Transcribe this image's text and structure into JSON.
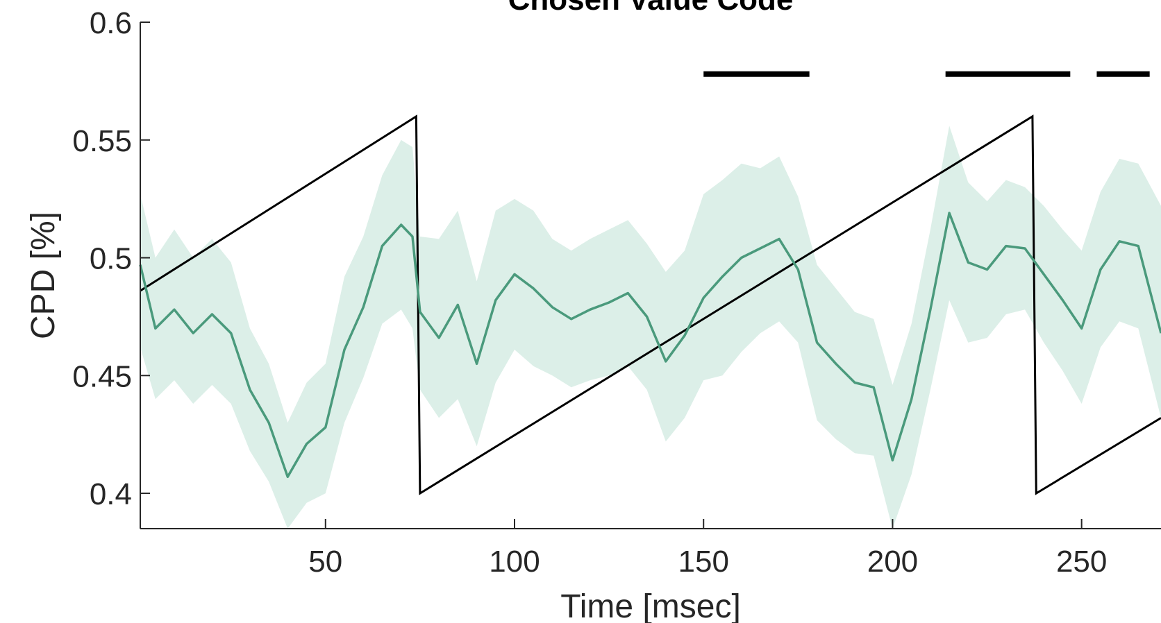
{
  "chart_data": {
    "type": "line",
    "title": "Chosen Value Code",
    "xlabel": "Time [msec]",
    "ylabel": "CPD [%]",
    "xlim": [
      1,
      271
    ],
    "ylim": [
      0.385,
      0.6
    ],
    "xticks": [
      50,
      100,
      150,
      200,
      250
    ],
    "xtick_labels": [
      "50",
      "100",
      "150",
      "200",
      "250"
    ],
    "yticks": [
      0.4,
      0.45,
      0.5,
      0.55,
      0.6
    ],
    "ytick_labels": [
      "0.4",
      "0.45",
      "0.5",
      "0.55",
      "0.6"
    ],
    "grid": false,
    "legend": "none",
    "colors": {
      "series": "#4a9a7c",
      "band": "#dcefe8",
      "reference": "#000000"
    },
    "series": [
      {
        "type": "line_with_sem_band",
        "x": [
          1,
          5,
          10,
          15,
          20,
          25,
          30,
          35,
          40,
          45,
          50,
          55,
          60,
          65,
          70,
          73,
          75,
          80,
          85,
          90,
          95,
          100,
          105,
          110,
          115,
          120,
          125,
          130,
          135,
          140,
          145,
          150,
          155,
          160,
          165,
          170,
          175,
          180,
          185,
          190,
          195,
          200,
          205,
          210,
          215,
          220,
          225,
          230,
          235,
          240,
          245,
          250,
          255,
          260,
          265,
          271
        ],
        "y": [
          0.497,
          0.47,
          0.478,
          0.468,
          0.476,
          0.468,
          0.444,
          0.43,
          0.407,
          0.421,
          0.428,
          0.461,
          0.479,
          0.505,
          0.514,
          0.509,
          0.477,
          0.466,
          0.48,
          0.455,
          0.482,
          0.493,
          0.487,
          0.479,
          0.474,
          0.478,
          0.481,
          0.485,
          0.475,
          0.456,
          0.467,
          0.483,
          0.492,
          0.5,
          0.504,
          0.508,
          0.495,
          0.464,
          0.455,
          0.447,
          0.445,
          0.414,
          0.44,
          0.478,
          0.519,
          0.498,
          0.495,
          0.505,
          0.504,
          0.493,
          0.482,
          0.47,
          0.495,
          0.507,
          0.505,
          0.468
        ],
        "upper": [
          0.527,
          0.5,
          0.512,
          0.5,
          0.508,
          0.498,
          0.47,
          0.455,
          0.43,
          0.447,
          0.455,
          0.492,
          0.509,
          0.535,
          0.55,
          0.547,
          0.509,
          0.508,
          0.52,
          0.49,
          0.52,
          0.525,
          0.52,
          0.508,
          0.503,
          0.508,
          0.512,
          0.516,
          0.506,
          0.494,
          0.503,
          0.527,
          0.533,
          0.54,
          0.538,
          0.543,
          0.526,
          0.497,
          0.487,
          0.477,
          0.474,
          0.446,
          0.472,
          0.512,
          0.556,
          0.532,
          0.524,
          0.533,
          0.53,
          0.522,
          0.512,
          0.503,
          0.528,
          0.542,
          0.54,
          0.522
        ],
        "lower": [
          0.462,
          0.44,
          0.448,
          0.438,
          0.446,
          0.438,
          0.418,
          0.405,
          0.384,
          0.396,
          0.4,
          0.43,
          0.449,
          0.472,
          0.478,
          0.47,
          0.444,
          0.432,
          0.44,
          0.42,
          0.447,
          0.461,
          0.454,
          0.45,
          0.445,
          0.448,
          0.45,
          0.454,
          0.444,
          0.422,
          0.432,
          0.448,
          0.45,
          0.46,
          0.468,
          0.473,
          0.464,
          0.431,
          0.423,
          0.417,
          0.416,
          0.382,
          0.408,
          0.444,
          0.482,
          0.464,
          0.466,
          0.476,
          0.478,
          0.464,
          0.452,
          0.438,
          0.462,
          0.473,
          0.47,
          0.432
        ]
      },
      {
        "type": "reference_sawtooth",
        "x": [
          1,
          74,
          75,
          237,
          238,
          271
        ],
        "y": [
          0.486,
          0.56,
          0.4,
          0.56,
          0.4,
          0.432
        ]
      }
    ],
    "significance_bars": {
      "y": 0.578,
      "segments": [
        [
          150,
          178
        ],
        [
          214,
          247
        ],
        [
          254,
          268
        ]
      ]
    }
  }
}
